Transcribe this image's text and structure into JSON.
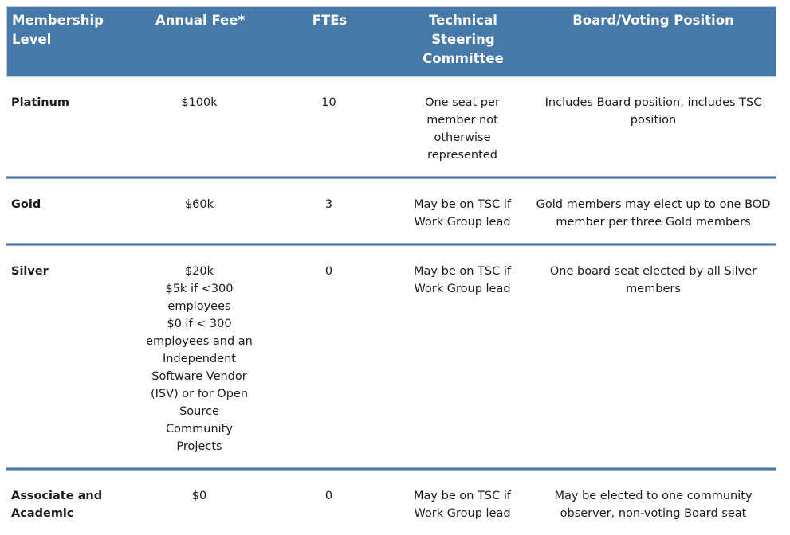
{
  "colors": {
    "header_bg": "#4678A8",
    "header_border": "#BCCDDD",
    "header_text": "#FFFFFF",
    "separator": "#4A79A8",
    "body_text": "#1B1B1B",
    "page_bg": "#FFFFFF"
  },
  "table": {
    "columns": [
      {
        "label": "Membership\nLevel"
      },
      {
        "label": "Annual Fee*"
      },
      {
        "label": "FTEs"
      },
      {
        "label": "Technical\nSteering\nCommittee"
      },
      {
        "label": "Board/Voting Position"
      }
    ],
    "rows": [
      {
        "level": "Platinum",
        "fee": "$100k",
        "ftes": "10",
        "tsc": "One seat per\nmember not\notherwise\nrepresented",
        "board": "Includes Board position, includes TSC\nposition"
      },
      {
        "level": "Gold",
        "fee": "$60k",
        "ftes": "3",
        "tsc": "May be on TSC if\nWork Group lead",
        "board": "Gold members may elect up to one BOD\nmember per three Gold members"
      },
      {
        "level": "Silver",
        "fee": "$20k\n$5k if <300\nemployees\n$0 if < 300\nemployees and an\nIndependent\nSoftware Vendor\n(ISV) or for Open\nSource\nCommunity\nProjects",
        "ftes": "0",
        "tsc": "May be on TSC if\nWork Group lead",
        "board": "One board seat elected by all Silver\nmembers"
      },
      {
        "level": "Associate and\nAcademic",
        "fee": "$0",
        "ftes": "0",
        "tsc": "May be on TSC if\nWork Group lead",
        "board": "May be elected to one community\nobserver, non-voting Board seat"
      }
    ]
  }
}
